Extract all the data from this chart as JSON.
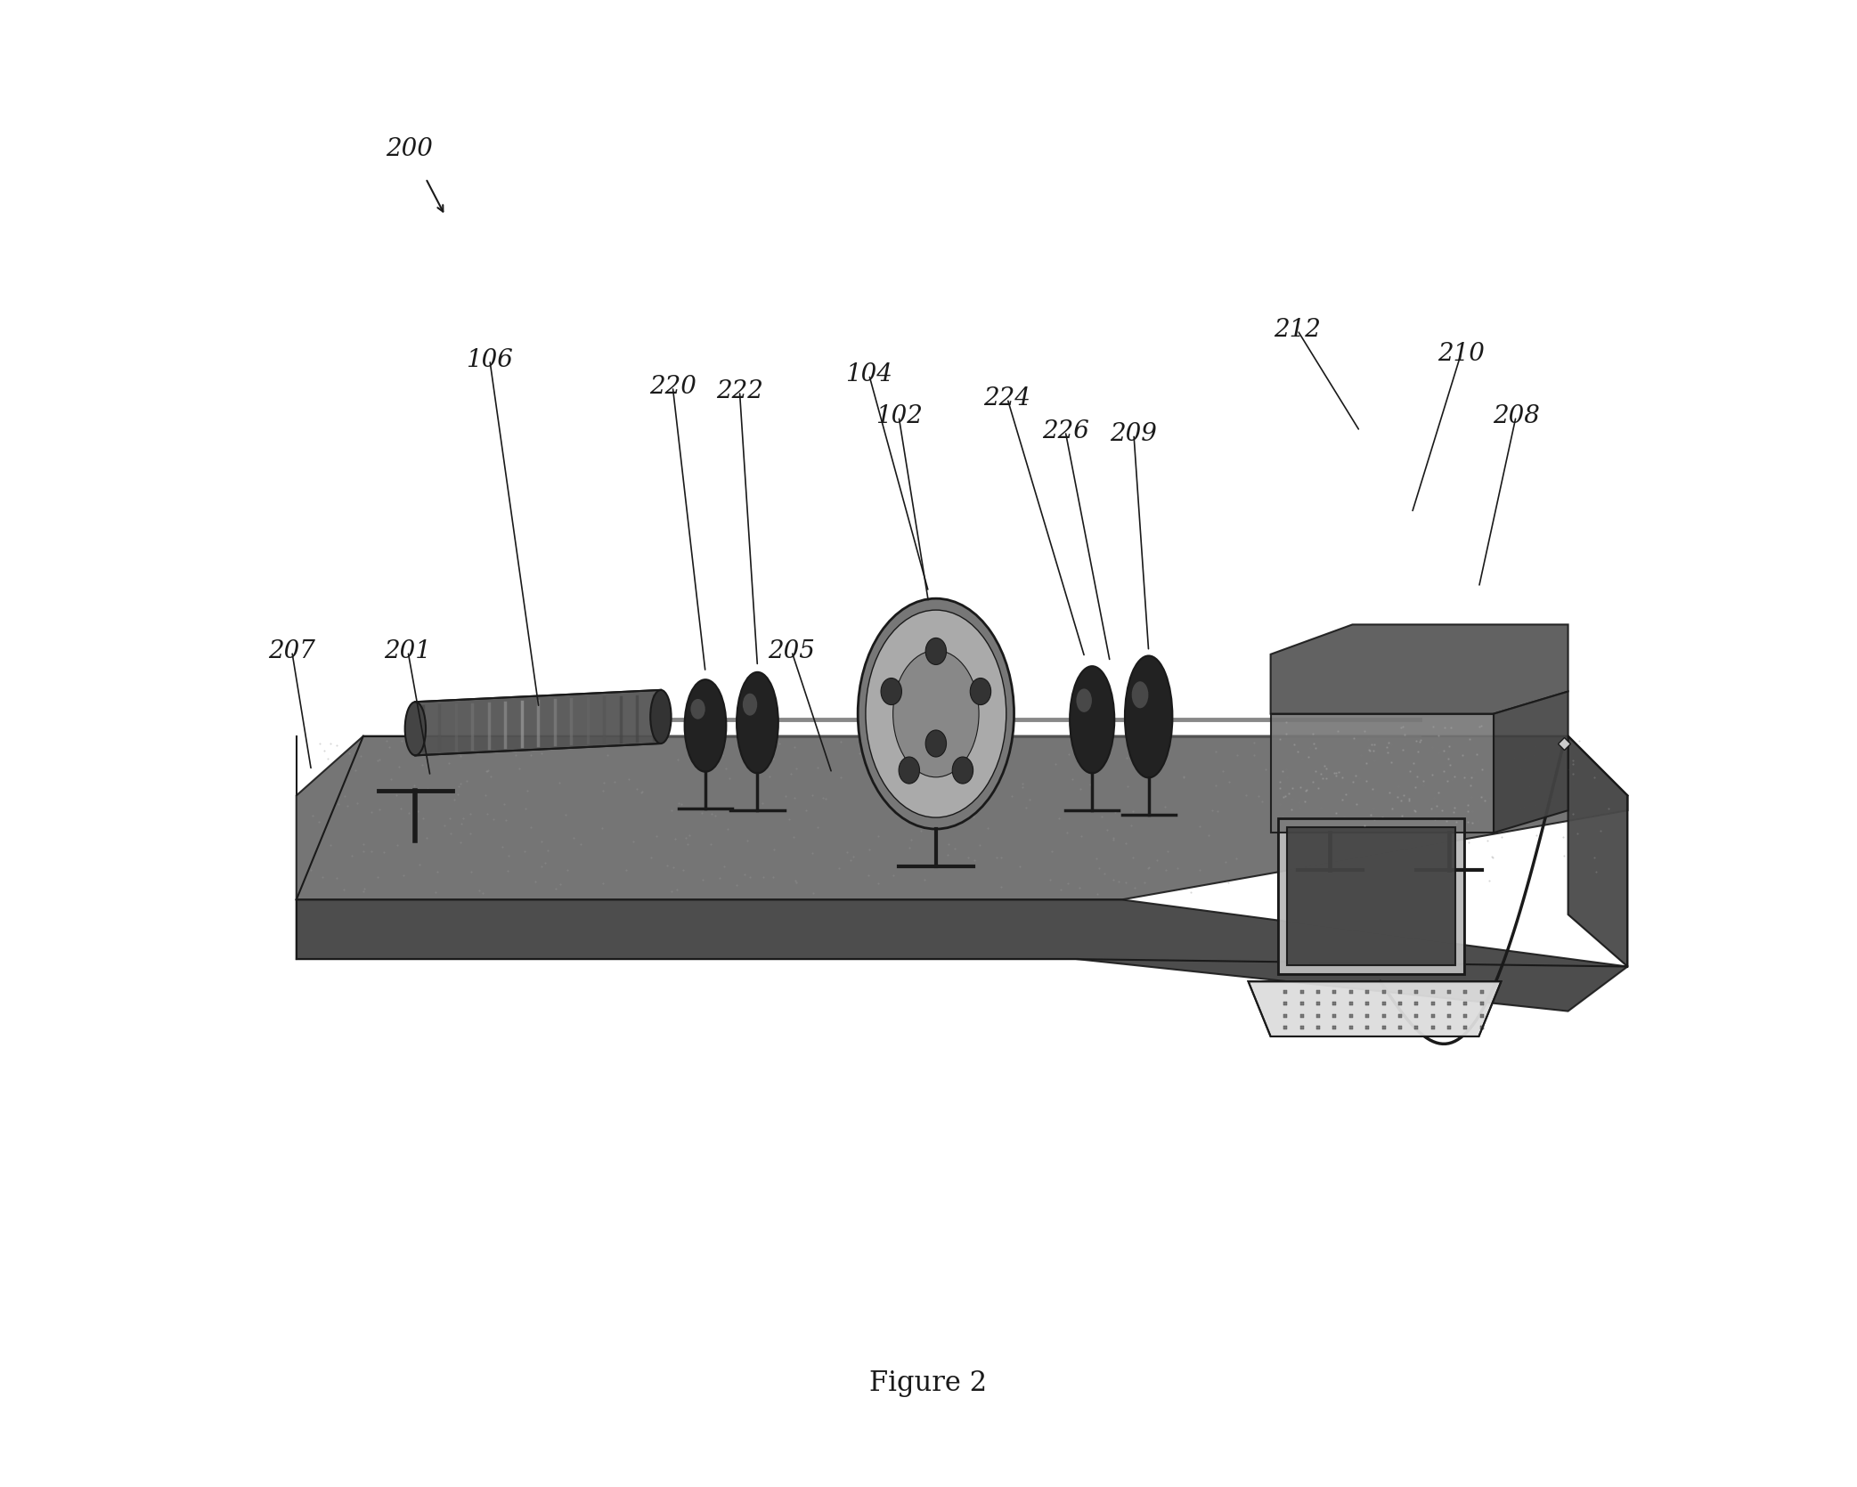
{
  "figure_label": "Figure 2",
  "ref_number": "200",
  "bg_color": "#ffffff",
  "drawing_color": "#1a1a1a",
  "figure_fontsize": 22,
  "label_fontsize": 20
}
